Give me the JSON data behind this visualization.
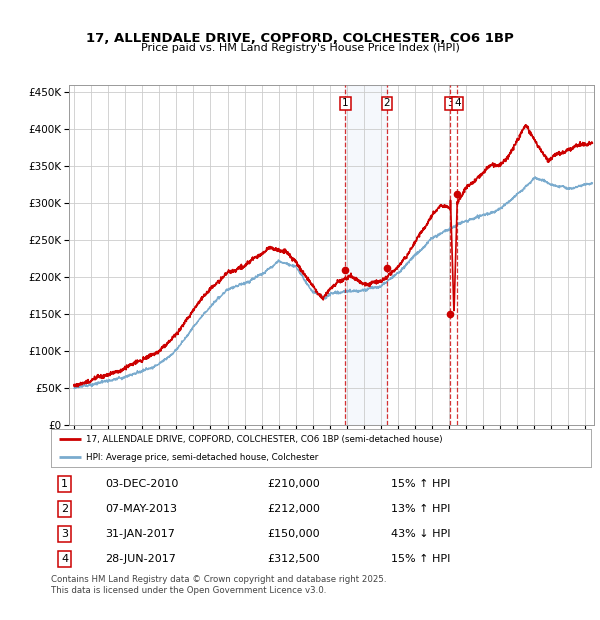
{
  "title": "17, ALLENDALE DRIVE, COPFORD, COLCHESTER, CO6 1BP",
  "subtitle": "Price paid vs. HM Land Registry's House Price Index (HPI)",
  "ylim": [
    0,
    460000
  ],
  "yticks": [
    0,
    50000,
    100000,
    150000,
    200000,
    250000,
    300000,
    350000,
    400000,
    450000
  ],
  "ytick_labels": [
    "£0",
    "£50K",
    "£100K",
    "£150K",
    "£200K",
    "£250K",
    "£300K",
    "£350K",
    "£400K",
    "£450K"
  ],
  "xlim_start": 1994.7,
  "xlim_end": 2025.5,
  "xticks": [
    1995,
    1996,
    1997,
    1998,
    1999,
    2000,
    2001,
    2002,
    2003,
    2004,
    2005,
    2006,
    2007,
    2008,
    2009,
    2010,
    2011,
    2012,
    2013,
    2014,
    2015,
    2016,
    2017,
    2018,
    2019,
    2020,
    2021,
    2022,
    2023,
    2024,
    2025
  ],
  "legend_line1": "17, ALLENDALE DRIVE, COPFORD, COLCHESTER, CO6 1BP (semi-detached house)",
  "legend_line2": "HPI: Average price, semi-detached house, Colchester",
  "legend_line1_color": "#cc0000",
  "legend_line2_color": "#7aabce",
  "transactions": [
    {
      "num": 1,
      "date_str": "03-DEC-2010",
      "date_x": 2010.92,
      "price": 210000,
      "pct": "15%",
      "dir": "↑",
      "label": "1"
    },
    {
      "num": 2,
      "date_str": "07-MAY-2013",
      "date_x": 2013.35,
      "price": 212000,
      "pct": "13%",
      "dir": "↑",
      "label": "2"
    },
    {
      "num": 3,
      "date_str": "31-JAN-2017",
      "date_x": 2017.08,
      "price": 150000,
      "pct": "43%",
      "dir": "↓",
      "label": "3"
    },
    {
      "num": 4,
      "date_str": "28-JUN-2017",
      "date_x": 2017.49,
      "price": 312500,
      "pct": "15%",
      "dir": "↑",
      "label": "4"
    }
  ],
  "shade_x1": 2010.92,
  "shade_x2": 2013.35,
  "footer": "Contains HM Land Registry data © Crown copyright and database right 2025.\nThis data is licensed under the Open Government Licence v3.0.",
  "background_color": "#ffffff",
  "plot_bg": "#ffffff",
  "grid_color": "#cccccc"
}
